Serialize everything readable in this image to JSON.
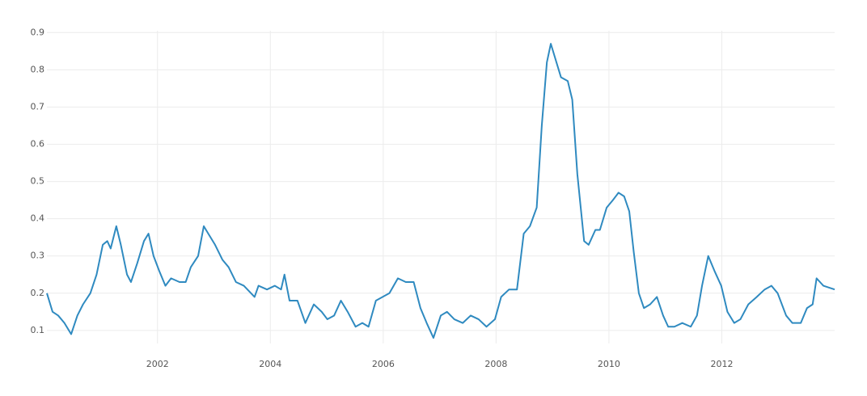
{
  "chart_data": {
    "type": "line",
    "color": "#2f8ac0",
    "grid": true,
    "xlim": [
      2000.04,
      2014.0
    ],
    "xticks": [
      2002,
      2004,
      2006,
      2008,
      2010,
      2012
    ],
    "ylim": [
      0.065,
      0.905
    ],
    "yticks": [
      0.1,
      0.2,
      0.3,
      0.4,
      0.5,
      0.6,
      0.7,
      0.8,
      0.9
    ],
    "x": [
      2000.04,
      2000.14,
      2000.24,
      2000.35,
      2000.47,
      2000.58,
      2000.68,
      2000.81,
      2000.92,
      2001.03,
      2001.11,
      2001.17,
      2001.27,
      2001.35,
      2001.46,
      2001.53,
      2001.64,
      2001.76,
      2001.84,
      2001.93,
      2002.03,
      2002.14,
      2002.24,
      2002.39,
      2002.5,
      2002.59,
      2002.72,
      2002.82,
      2002.9,
      2003.02,
      2003.15,
      2003.26,
      2003.39,
      2003.53,
      2003.72,
      2003.79,
      2003.94,
      2004.08,
      2004.19,
      2004.25,
      2004.34,
      2004.48,
      2004.62,
      2004.77,
      2004.91,
      2005.01,
      2005.13,
      2005.25,
      2005.37,
      2005.51,
      2005.63,
      2005.74,
      2005.87,
      2005.99,
      2006.11,
      2006.26,
      2006.4,
      2006.54,
      2006.66,
      2006.77,
      2006.89,
      2007.02,
      2007.13,
      2007.26,
      2007.41,
      2007.55,
      2007.69,
      2007.83,
      2007.98,
      2008.09,
      2008.23,
      2008.37,
      2008.49,
      2008.6,
      2008.72,
      2008.81,
      2008.9,
      2008.97,
      2009.07,
      2009.15,
      2009.27,
      2009.35,
      2009.44,
      2009.56,
      2009.64,
      2009.76,
      2009.84,
      2009.96,
      2010.07,
      2010.17,
      2010.27,
      2010.36,
      2010.44,
      2010.53,
      2010.62,
      2010.73,
      2010.85,
      2010.96,
      2011.05,
      2011.16,
      2011.3,
      2011.45,
      2011.56,
      2011.65,
      2011.76,
      2011.87,
      2011.99,
      2012.1,
      2012.22,
      2012.33,
      2012.47,
      2012.62,
      2012.76,
      2012.88,
      2012.99,
      2013.14,
      2013.25,
      2013.4,
      2013.51,
      2013.61,
      2013.68,
      2013.8,
      2014.0
    ],
    "values": [
      0.2,
      0.15,
      0.14,
      0.12,
      0.09,
      0.14,
      0.17,
      0.2,
      0.25,
      0.33,
      0.34,
      0.32,
      0.38,
      0.33,
      0.25,
      0.23,
      0.28,
      0.34,
      0.36,
      0.3,
      0.26,
      0.22,
      0.24,
      0.23,
      0.23,
      0.27,
      0.3,
      0.38,
      0.36,
      0.33,
      0.29,
      0.27,
      0.23,
      0.22,
      0.19,
      0.22,
      0.21,
      0.22,
      0.21,
      0.25,
      0.18,
      0.18,
      0.12,
      0.17,
      0.15,
      0.13,
      0.14,
      0.18,
      0.15,
      0.11,
      0.12,
      0.11,
      0.18,
      0.19,
      0.2,
      0.24,
      0.23,
      0.23,
      0.16,
      0.12,
      0.08,
      0.14,
      0.15,
      0.13,
      0.12,
      0.14,
      0.13,
      0.11,
      0.13,
      0.19,
      0.21,
      0.21,
      0.36,
      0.38,
      0.43,
      0.65,
      0.82,
      0.87,
      0.82,
      0.78,
      0.77,
      0.72,
      0.52,
      0.34,
      0.33,
      0.37,
      0.37,
      0.43,
      0.45,
      0.47,
      0.46,
      0.42,
      0.31,
      0.2,
      0.16,
      0.17,
      0.19,
      0.14,
      0.11,
      0.11,
      0.12,
      0.11,
      0.14,
      0.22,
      0.3,
      0.26,
      0.22,
      0.15,
      0.12,
      0.13,
      0.17,
      0.19,
      0.21,
      0.22,
      0.2,
      0.14,
      0.12,
      0.12,
      0.16,
      0.17,
      0.24,
      0.22,
      0.21
    ]
  }
}
